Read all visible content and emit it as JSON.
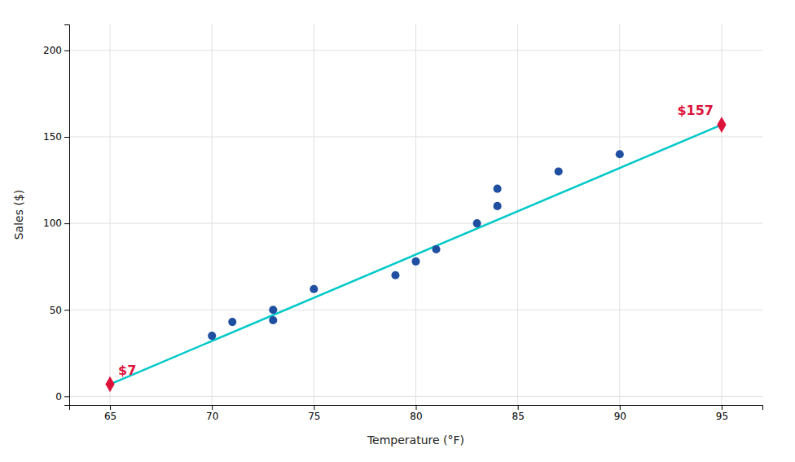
{
  "chart_data": {
    "type": "scatter",
    "x_label": "Temperature (°F)",
    "y_label": "Sales ($)",
    "xlim": [
      63,
      97
    ],
    "ylim": [
      -5,
      215
    ],
    "xticks": [
      65,
      70,
      75,
      80,
      85,
      90,
      95
    ],
    "yticks": [
      0,
      50,
      100,
      150,
      200
    ],
    "grid": true,
    "series": [
      {
        "type": "line",
        "line_style": "solid",
        "color": "#00c8c8",
        "x": [
          65,
          95
        ],
        "values": [
          7,
          157
        ]
      },
      {
        "type": "scatter",
        "marker": "circle",
        "color": "#1f4fa0",
        "x": [
          70,
          71,
          73,
          73,
          75,
          79,
          80,
          81,
          83,
          84,
          84,
          87,
          90
        ],
        "values": [
          35,
          43,
          50,
          44,
          62,
          70,
          78,
          85,
          100,
          110,
          120,
          130,
          140
        ]
      },
      {
        "type": "scatter",
        "marker": "diamond",
        "color": "#dc143c",
        "x": [
          65,
          95
        ],
        "values": [
          7,
          157
        ],
        "data_labels": true,
        "value_labels": [
          "$7",
          "$157"
        ]
      }
    ]
  }
}
